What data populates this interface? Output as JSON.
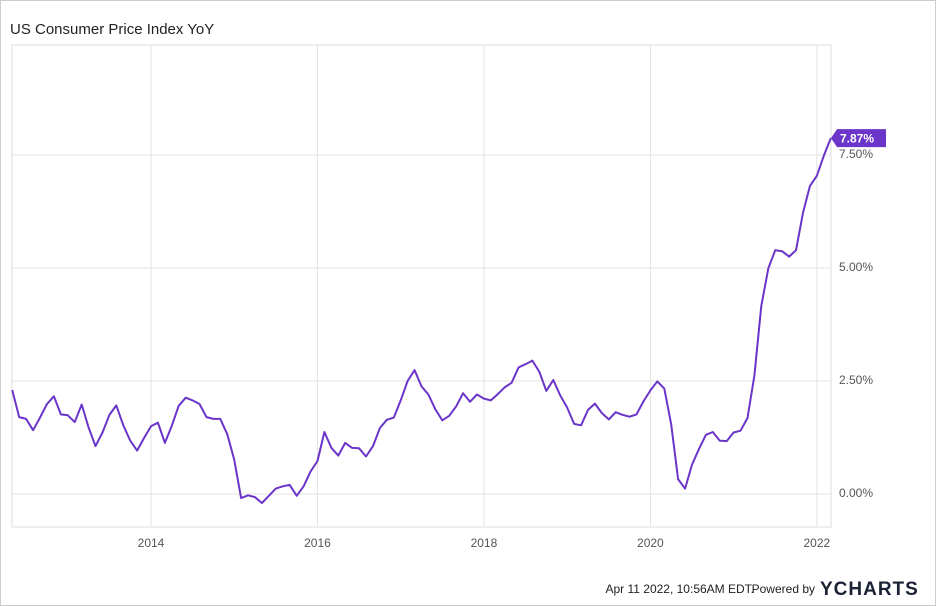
{
  "chart_data": {
    "type": "line",
    "title": "US Consumer Price Index YoY",
    "x": [
      2012.333,
      2012.417,
      2012.5,
      2012.583,
      2012.667,
      2012.75,
      2012.833,
      2012.917,
      2013,
      2013.083,
      2013.167,
      2013.25,
      2013.333,
      2013.417,
      2013.5,
      2013.583,
      2013.667,
      2013.75,
      2013.833,
      2013.917,
      2014,
      2014.083,
      2014.167,
      2014.25,
      2014.333,
      2014.417,
      2014.5,
      2014.583,
      2014.667,
      2014.75,
      2014.833,
      2014.917,
      2015,
      2015.083,
      2015.167,
      2015.25,
      2015.333,
      2015.417,
      2015.5,
      2015.583,
      2015.667,
      2015.75,
      2015.833,
      2015.917,
      2016,
      2016.083,
      2016.167,
      2016.25,
      2016.333,
      2016.417,
      2016.5,
      2016.583,
      2016.667,
      2016.75,
      2016.833,
      2016.917,
      2017,
      2017.083,
      2017.167,
      2017.25,
      2017.333,
      2017.417,
      2017.5,
      2017.583,
      2017.667,
      2017.75,
      2017.833,
      2017.917,
      2018,
      2018.083,
      2018.167,
      2018.25,
      2018.333,
      2018.417,
      2018.5,
      2018.583,
      2018.667,
      2018.75,
      2018.833,
      2018.917,
      2019,
      2019.083,
      2019.167,
      2019.25,
      2019.333,
      2019.417,
      2019.5,
      2019.583,
      2019.667,
      2019.75,
      2019.833,
      2019.917,
      2020,
      2020.083,
      2020.167,
      2020.25,
      2020.333,
      2020.417,
      2020.5,
      2020.583,
      2020.667,
      2020.75,
      2020.833,
      2020.917,
      2021,
      2021.083,
      2021.167,
      2021.25,
      2021.333,
      2021.417,
      2021.5,
      2021.583,
      2021.667,
      2021.75,
      2021.833,
      2021.917,
      2022,
      2022.083,
      2022.167
    ],
    "series": [
      {
        "name": "US Consumer Price Index YoY",
        "color": "#6a35c8",
        "values": [
          2.3,
          1.7,
          1.66,
          1.41,
          1.69,
          1.99,
          2.16,
          1.76,
          1.74,
          1.59,
          1.98,
          1.47,
          1.06,
          1.36,
          1.75,
          1.96,
          1.52,
          1.18,
          0.96,
          1.24,
          1.5,
          1.58,
          1.13,
          1.51,
          1.95,
          2.13,
          2.07,
          1.99,
          1.7,
          1.66,
          1.66,
          1.32,
          0.76,
          -0.09,
          -0.03,
          -0.07,
          -0.2,
          -0.04,
          0.12,
          0.17,
          0.2,
          -0.04,
          0.17,
          0.5,
          0.73,
          1.37,
          1.02,
          0.85,
          1.13,
          1.02,
          1.01,
          0.83,
          1.06,
          1.46,
          1.64,
          1.69,
          2.07,
          2.5,
          2.74,
          2.38,
          2.2,
          1.87,
          1.63,
          1.73,
          1.94,
          2.23,
          2.04,
          2.2,
          2.11,
          2.07,
          2.21,
          2.36,
          2.46,
          2.8,
          2.87,
          2.95,
          2.7,
          2.28,
          2.52,
          2.18,
          1.91,
          1.55,
          1.52,
          1.86,
          2.0,
          1.79,
          1.65,
          1.81,
          1.75,
          1.71,
          1.76,
          2.05,
          2.29,
          2.49,
          2.33,
          1.54,
          0.33,
          0.12,
          0.65,
          0.99,
          1.31,
          1.37,
          1.18,
          1.17,
          1.36,
          1.4,
          1.68,
          2.62,
          4.16,
          4.99,
          5.39,
          5.37,
          5.25,
          5.39,
          6.22,
          6.81,
          7.04,
          7.48,
          7.87
        ]
      }
    ],
    "end_label": "7.87%",
    "xlim": [
      2012.33,
      2022.17
    ],
    "xticks": [
      2014,
      2016,
      2018,
      2020,
      2022
    ],
    "ylim": [
      -0.73,
      9.93
    ],
    "yticks": [
      {
        "value": 0,
        "label": "0.00%"
      },
      {
        "value": 2.5,
        "label": "2.50%"
      },
      {
        "value": 5,
        "label": "5.00%"
      },
      {
        "value": 7.5,
        "label": "7.50%"
      }
    ],
    "grid": true
  },
  "footer": {
    "timestamp": "Apr 11 2022, 10:56AM EDT.",
    "powered": "Powered by",
    "brand": "YCHARTS"
  }
}
